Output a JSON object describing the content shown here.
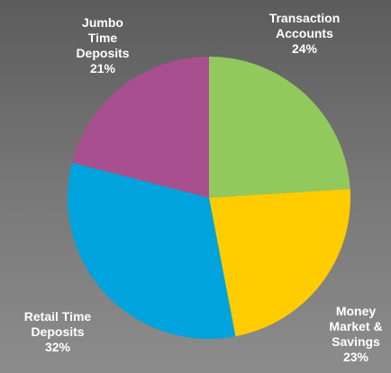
{
  "chart_data": {
    "type": "pie",
    "categories": [
      "Transaction Accounts",
      "Money Market & Savings",
      "Retail Time Deposits",
      "Jumbo Time Deposits"
    ],
    "values": [
      24,
      23,
      32,
      21
    ],
    "value_labels": [
      "24%",
      "23%",
      "32%",
      "21%"
    ],
    "colors": [
      "#92c95c",
      "#ffcc00",
      "#00a3dc",
      "#a8508f"
    ]
  }
}
